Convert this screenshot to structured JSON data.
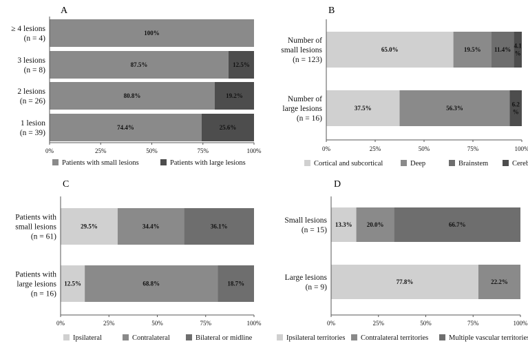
{
  "colors": {
    "light": "#d0d0d0",
    "medium": "#8a8a8a",
    "dark": "#4d4d4d",
    "axis": "#555555"
  },
  "chart_data": [
    {
      "id": "A",
      "type": "bar",
      "stacked": "percent",
      "orientation": "horizontal",
      "panel_label": "A",
      "categories": [
        [
          "≥ 4 lesions",
          "(n = 4)"
        ],
        [
          "3 lesions",
          "(n = 8)"
        ],
        [
          "2 lesions",
          "(n = 26)"
        ],
        [
          "1 lesion",
          "(n = 39)"
        ]
      ],
      "series": [
        {
          "name": "Patients with small lesions",
          "color": "#8a8a8a",
          "values": [
            100,
            87.5,
            80.8,
            74.4
          ],
          "labels": [
            "100%",
            "87.5%",
            "80.8%",
            "74.4%"
          ]
        },
        {
          "name": "Patients with large lesions",
          "color": "#4d4d4d",
          "values": [
            0,
            12.5,
            19.2,
            25.6
          ],
          "labels": [
            "",
            "12.5%",
            "19.2%",
            "25.6%"
          ]
        }
      ],
      "xlim": [
        0,
        100
      ],
      "xticks": [
        "0%",
        "25%",
        "50%",
        "75%",
        "100%"
      ],
      "grid": false,
      "legend": "bottom"
    },
    {
      "id": "B",
      "type": "bar",
      "stacked": "percent",
      "orientation": "horizontal",
      "panel_label": "B",
      "categories": [
        [
          "Number of",
          "small lesions",
          "(n = 123)"
        ],
        [
          "Number of",
          "large lesions",
          "(n = 16)"
        ]
      ],
      "series": [
        {
          "name": "Cortical and subcortical",
          "color": "#d0d0d0",
          "values": [
            65.0,
            37.5
          ],
          "labels": [
            "65.0%",
            "37.5%"
          ]
        },
        {
          "name": "Deep",
          "color": "#8a8a8a",
          "values": [
            19.5,
            56.3
          ],
          "labels": [
            "19.5%",
            "56.3%"
          ]
        },
        {
          "name": "Brainstem",
          "color": "#6e6e6e",
          "values": [
            11.4,
            0
          ],
          "labels": [
            "11.4%",
            ""
          ]
        },
        {
          "name": "Cerebellum",
          "color": "#4d4d4d",
          "values": [
            4.1,
            6.2
          ],
          "labels": [
            [
              "4.1",
              "%"
            ],
            [
              "6.2",
              "%"
            ]
          ]
        }
      ],
      "xlim": [
        0,
        100
      ],
      "xticks": [
        "0%",
        "25%",
        "50%",
        "75%",
        "100%"
      ],
      "grid": false,
      "legend": "bottom"
    },
    {
      "id": "C",
      "type": "bar",
      "stacked": "percent",
      "orientation": "horizontal",
      "panel_label": "C",
      "categories": [
        [
          "Patients with",
          "small lesions",
          "(n = 61)"
        ],
        [
          "Patients with",
          "large lesions",
          "(n = 16)"
        ]
      ],
      "series": [
        {
          "name": "Ipsilateral",
          "color": "#d0d0d0",
          "values": [
            29.5,
            12.5
          ],
          "labels": [
            "29.5%",
            "12.5%"
          ]
        },
        {
          "name": "Contralateral",
          "color": "#8a8a8a",
          "values": [
            34.4,
            68.8
          ],
          "labels": [
            "34.4%",
            "68.8%"
          ]
        },
        {
          "name": "Bilateral or midline",
          "color": "#6e6e6e",
          "values": [
            36.1,
            18.7
          ],
          "labels": [
            "36.1%",
            "18.7%"
          ]
        }
      ],
      "xlim": [
        0,
        100
      ],
      "xticks": [
        "0%",
        "25%",
        "50%",
        "75%",
        "100%"
      ],
      "grid": false,
      "legend": "bottom"
    },
    {
      "id": "D",
      "type": "bar",
      "stacked": "percent",
      "orientation": "horizontal",
      "panel_label": "D",
      "categories": [
        [
          "Small  lesions",
          "(n = 15)"
        ],
        [
          "Large  lesions",
          "(n = 9)"
        ]
      ],
      "series": [
        {
          "name": "Ipsilateral territories",
          "color": "#d0d0d0",
          "values": [
            13.3,
            77.8
          ],
          "labels": [
            "13.3%",
            "77.8%"
          ]
        },
        {
          "name": "Contralateral territories",
          "color": "#8a8a8a",
          "values": [
            20.0,
            22.2
          ],
          "labels": [
            "20.0%",
            "22.2%"
          ]
        },
        {
          "name": "Multiple vascular territories",
          "color": "#6e6e6e",
          "values": [
            66.7,
            0
          ],
          "labels": [
            "66.7%",
            ""
          ]
        }
      ],
      "xlim": [
        0,
        100
      ],
      "xticks": [
        "0%",
        "25%",
        "50%",
        "75%",
        "100%"
      ],
      "grid": false,
      "legend": "bottom"
    }
  ]
}
